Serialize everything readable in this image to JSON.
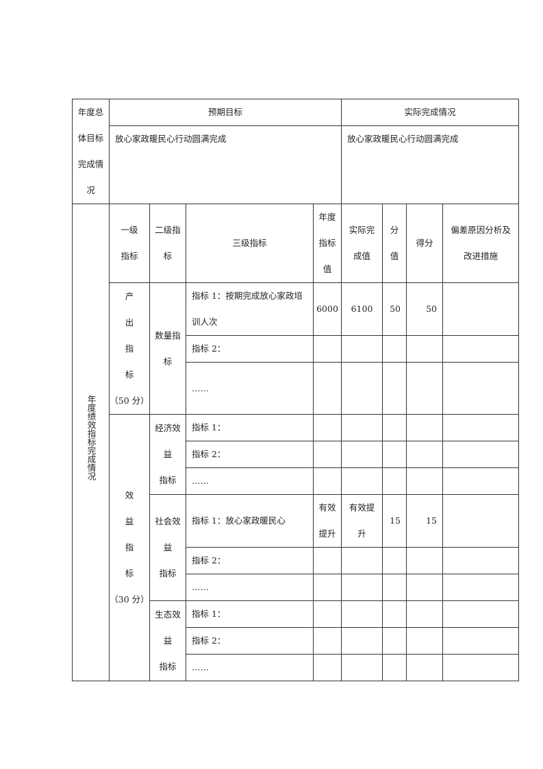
{
  "summary": {
    "row_label": "年度总\n体目标\n完成情\n况",
    "expected_header": "预期目标",
    "actual_header": "实际完成情况",
    "expected_value": "放心家政暖民心行动圆满完成",
    "actual_value": "放心家政暖民心行动圆满完成"
  },
  "perf": {
    "row_label": "年度绩效指标完成情况",
    "headers": {
      "level1": "一级\n指标",
      "level2": "二级指\n标",
      "level3": "三级指标",
      "target": "年度\n指标\n值",
      "actual": "实际完\n成值",
      "score_value": "分\n值",
      "score": "得分",
      "analysis": "偏差原因分析及\n改进措施"
    },
    "output": {
      "label": "产\n出\n指\n标\n（50 分）",
      "quantity": "数量指\n标",
      "rows": [
        {
          "name": "指标 1：按期完成放心家政培\n训人次",
          "target": "6000",
          "actual": "6100",
          "value": "50",
          "score": "50"
        },
        {
          "name": "指标 2："
        },
        {
          "name": "……"
        }
      ]
    },
    "benefit": {
      "label": "效\n益\n指\n标\n（30 分）",
      "economic": "经济效\n益\n指标",
      "economic_rows": [
        "指标 1：",
        "指标 2：",
        "……"
      ],
      "social": "社会效\n益\n指标",
      "social_rows": [
        {
          "name": "指标 1：放心家政暖民心",
          "target": "有效\n提升",
          "actual": "有效提\n升",
          "value": "15",
          "score": "15"
        },
        {
          "name": "指标 2："
        },
        {
          "name": "……"
        }
      ],
      "eco": "生态效\n益\n指标",
      "eco_rows": [
        "指标 1：",
        "指标 2：",
        "……"
      ]
    }
  }
}
